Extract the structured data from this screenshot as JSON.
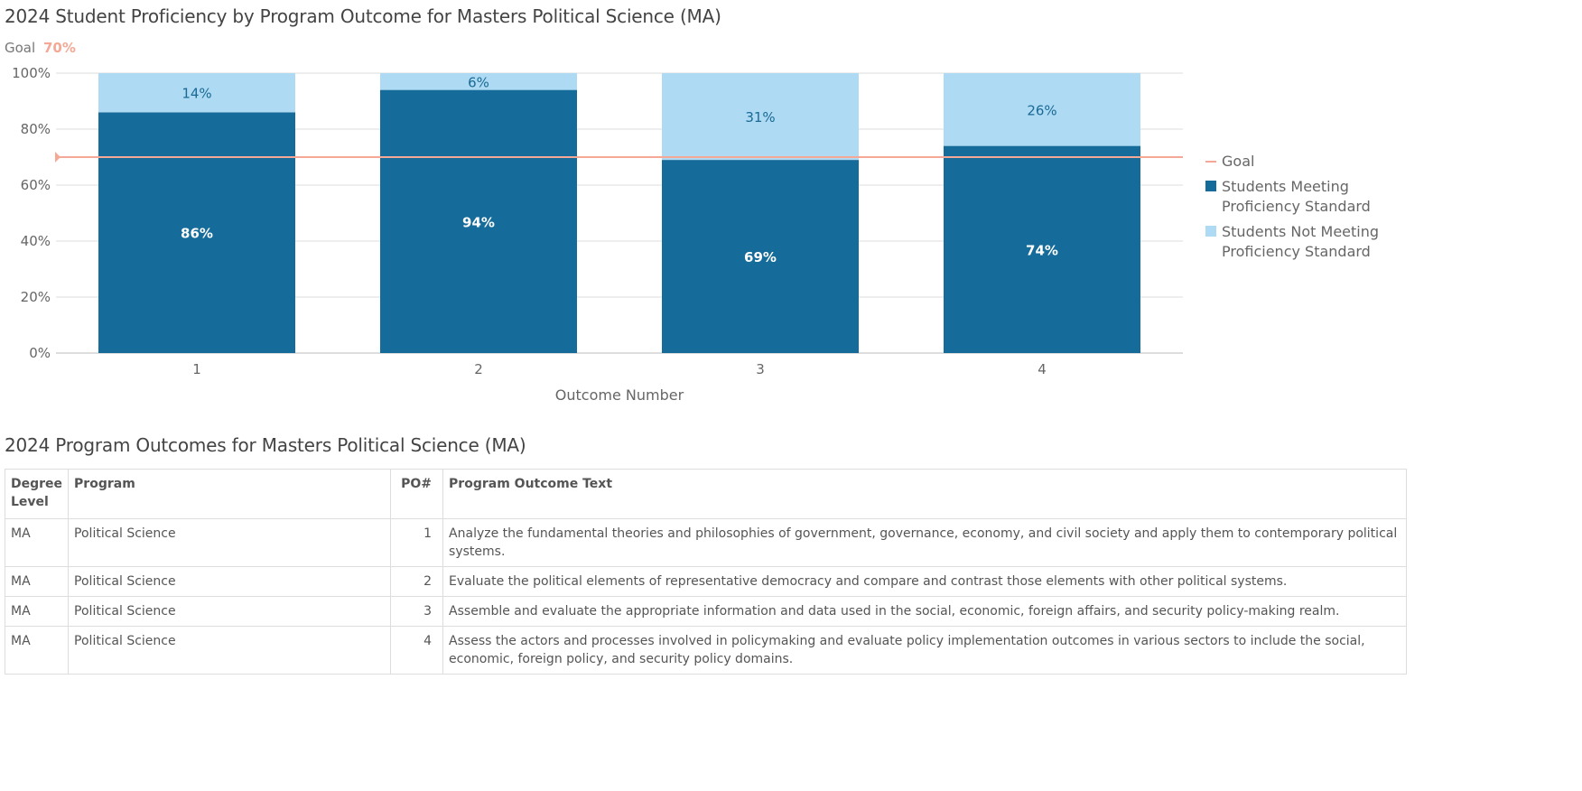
{
  "chart_title": "2024 Student Proficiency by Program Outcome for Masters Political Science (MA)",
  "goal_label": "Goal",
  "goal_value_label": "70%",
  "chart_data": {
    "type": "bar",
    "stacked": true,
    "title": "2024 Student Proficiency by Program Outcome for Masters Political Science (MA)",
    "xlabel": "Outcome Number",
    "ylabel": "",
    "ylim": [
      0,
      100
    ],
    "y_ticks": [
      "0%",
      "20%",
      "40%",
      "60%",
      "80%",
      "100%"
    ],
    "categories": [
      "1",
      "2",
      "3",
      "4"
    ],
    "goal": 70,
    "series": [
      {
        "name": "Students Meeting Proficiency Standard",
        "values": [
          86,
          94,
          69,
          74
        ],
        "labels": [
          "86%",
          "94%",
          "69%",
          "74%"
        ],
        "color": "#156b99"
      },
      {
        "name": "Students Not Meeting Proficiency Standard",
        "values": [
          14,
          6,
          31,
          26
        ],
        "labels": [
          "14%",
          "6%",
          "31%",
          "26%"
        ],
        "color": "#aedaf3"
      }
    ],
    "goal_color": "#f5a896",
    "grid": true,
    "legend": {
      "position": "right",
      "items": [
        {
          "label_lines": [
            "Goal"
          ],
          "marker": "line",
          "color": "#f5a896"
        },
        {
          "label_lines": [
            "Students Meeting",
            "Proficiency Standard"
          ],
          "marker": "square",
          "color": "#156b99"
        },
        {
          "label_lines": [
            "Students Not Meeting",
            "Proficiency Standard"
          ],
          "marker": "square",
          "color": "#aedaf3"
        }
      ]
    }
  },
  "table_title": "2024 Program Outcomes for Masters Political Science (MA)",
  "table": {
    "headers": [
      "Degree Level",
      "Program",
      "PO#",
      "Program Outcome Text"
    ],
    "rows": [
      [
        "MA",
        "Political Science",
        "1",
        "Analyze the fundamental theories and philosophies of government, governance, economy, and civil society and apply them to contemporary political systems."
      ],
      [
        "MA",
        "Political Science",
        "2",
        "Evaluate the political elements of representative democracy and compare and contrast those elements with other political systems."
      ],
      [
        "MA",
        "Political Science",
        "3",
        "Assemble and evaluate the appropriate information and data used in the social, economic, foreign affairs, and security policy-making realm."
      ],
      [
        "MA",
        "Political Science",
        "4",
        "Assess the actors and processes involved in policymaking and evaluate policy implementation outcomes in various sectors to include the social, economic, foreign policy, and security policy domains."
      ]
    ]
  }
}
